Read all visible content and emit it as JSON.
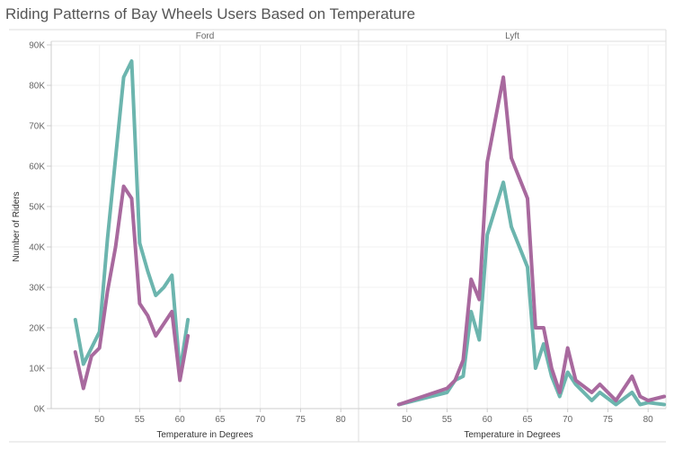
{
  "title": "Riding Patterns of Bay Wheels Users Based on Temperature",
  "chart_data": {
    "type": "line",
    "title": "Riding Patterns of Bay Wheels Users Based on Temperature",
    "xlabel": "Temperature in Degrees",
    "ylabel": "Number of Riders",
    "xlim": [
      44,
      84
    ],
    "ylim": [
      0,
      90000
    ],
    "x_ticks": [
      50,
      55,
      60,
      65,
      70,
      75,
      80
    ],
    "x_tick_labels": [
      "50",
      "55",
      "60",
      "65",
      "70",
      "75",
      "80"
    ],
    "y_ticks": [
      0,
      10000,
      20000,
      30000,
      40000,
      50000,
      60000,
      70000,
      80000,
      90000
    ],
    "y_tick_labels": [
      "0K",
      "10K",
      "20K",
      "30K",
      "40K",
      "50K",
      "60K",
      "70K",
      "80K",
      "90K"
    ],
    "grid": true,
    "colors": {
      "teal": "#6cb5ae",
      "purple": "#a8699e"
    },
    "panels": [
      {
        "header": "Ford",
        "series": [
          {
            "color": "#6cb5ae",
            "x": [
              47,
              48,
              49,
              50,
              51,
              52,
              53,
              54,
              55,
              56,
              57,
              58,
              59,
              60,
              61
            ],
            "y": [
              22000,
              11000,
              15000,
              19000,
              42000,
              62000,
              82000,
              86000,
              41000,
              34000,
              28000,
              30000,
              33000,
              9000,
              22000
            ]
          },
          {
            "color": "#a8699e",
            "x": [
              47,
              48,
              49,
              50,
              51,
              52,
              53,
              54,
              55,
              56,
              57,
              58,
              59,
              60,
              61
            ],
            "y": [
              14000,
              5000,
              13000,
              15000,
              29000,
              40000,
              55000,
              52000,
              26000,
              23000,
              18000,
              21000,
              24000,
              7000,
              18000
            ]
          }
        ]
      },
      {
        "header": "Lyft",
        "series": [
          {
            "color": "#6cb5ae",
            "x": [
              49,
              55,
              56,
              57,
              58,
              59,
              60,
              62,
              63,
              65,
              66,
              67,
              68,
              69,
              70,
              71,
              73,
              74,
              76,
              78,
              79,
              80,
              82
            ],
            "y": [
              1000,
              4000,
              7000,
              8000,
              24000,
              17000,
              43000,
              56000,
              45000,
              35000,
              10000,
              16000,
              8000,
              3000,
              9000,
              6000,
              2000,
              4000,
              1000,
              4000,
              1000,
              1500,
              1000
            ]
          },
          {
            "color": "#a8699e",
            "x": [
              49,
              55,
              56,
              57,
              58,
              59,
              60,
              62,
              63,
              65,
              66,
              67,
              68,
              69,
              70,
              71,
              73,
              74,
              76,
              78,
              79,
              80,
              82
            ],
            "y": [
              1000,
              5000,
              7000,
              12000,
              32000,
              27000,
              61000,
              82000,
              62000,
              52000,
              20000,
              20000,
              10000,
              4000,
              15000,
              7000,
              4000,
              6000,
              2000,
              8000,
              3000,
              2000,
              3000
            ]
          }
        ]
      }
    ]
  }
}
